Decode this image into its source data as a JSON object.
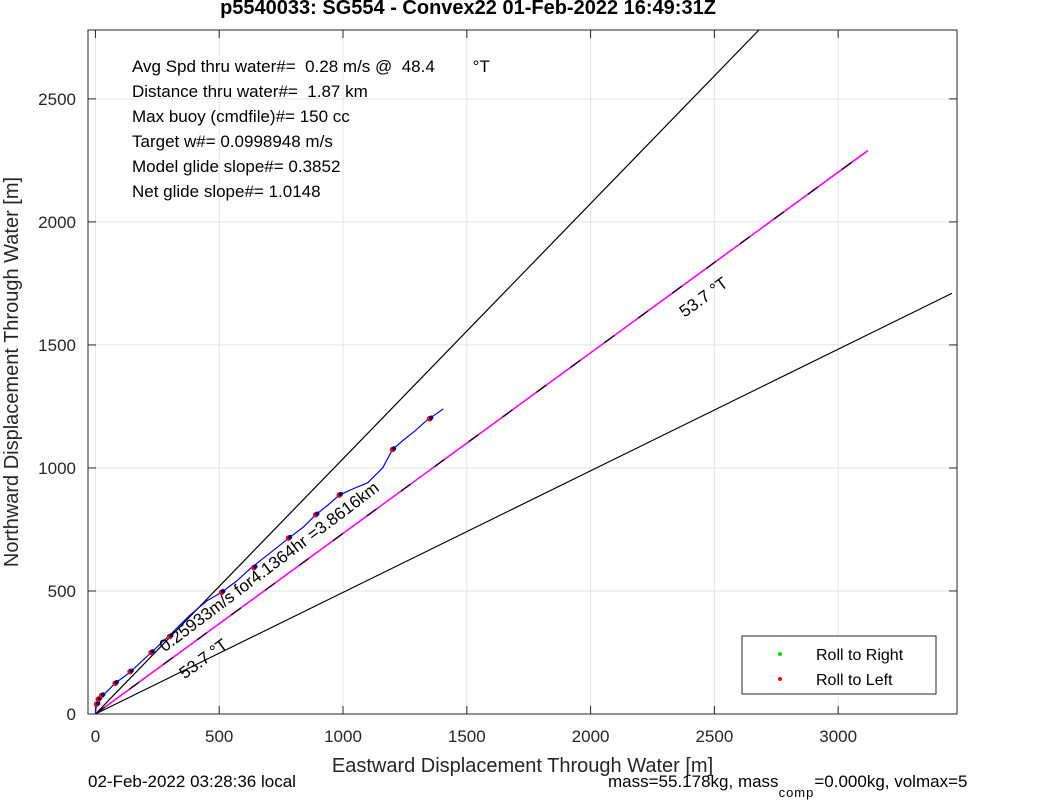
{
  "header": {
    "title": "p5540033: SG554 - Convex22 01-Feb-2022 16:49:31Z"
  },
  "footer": {
    "local_time": "02-Feb-2022 03:28:36 local",
    "mass_prefix": "mass=55.178kg, mass",
    "mass_sub": "comp",
    "mass_suffix": "=0.000kg, volmax=5"
  },
  "annotations": [
    "Avg Spd thru water#=  0.28 m/s @  48.4        °T",
    "Distance thru water#=  1.87 km",
    "Max buoy (cmdfile)#= 150 cc",
    "Target w#= 0.0998948 m/s",
    "Model glide slope#= 0.3852",
    "Net glide slope#= 1.0148"
  ],
  "chart_data": {
    "type": "line",
    "title": "p5540033: SG554 - Convex22 01-Feb-2022 16:49:31Z",
    "xlabel": "Eastward Displacement Through Water [m]",
    "ylabel": "Northward Displacement Through Water [m]",
    "xlim": [
      -30,
      3480
    ],
    "ylim": [
      0,
      2780
    ],
    "xticks": [
      0,
      500,
      1000,
      1500,
      2000,
      2500,
      3000
    ],
    "yticks": [
      0,
      500,
      1000,
      1500,
      2000,
      2500
    ],
    "grid": true,
    "legend": {
      "position": "bottom-right",
      "entries": [
        {
          "label": "Roll to Right",
          "color": "#00dd00"
        },
        {
          "label": "Roll to Left",
          "color": "#ff0000"
        }
      ]
    },
    "colors": {
      "track": "#0000ff",
      "bearing_line": "#ff00ff",
      "cone_lines": "#000000",
      "roll_left": "#ff0000",
      "roll_right": "#00dd00",
      "dive_points": "#000080"
    },
    "track": {
      "x": [
        0,
        2,
        5,
        10,
        20,
        40,
        80,
        140,
        220,
        300,
        380,
        450,
        510,
        570,
        630,
        700,
        775,
        840,
        890,
        940,
        985,
        1040,
        1100,
        1160,
        1200,
        1240,
        1290,
        1340,
        1370,
        1405
      ],
      "y": [
        0,
        20,
        40,
        55,
        68,
        85,
        125,
        170,
        245,
        320,
        400,
        460,
        495,
        540,
        595,
        650,
        710,
        760,
        810,
        850,
        890,
        915,
        940,
        1000,
        1075,
        1110,
        1150,
        1195,
        1215,
        1240
      ]
    },
    "dive_markers": {
      "x": [
        5,
        12,
        25,
        80,
        140,
        225,
        300,
        510,
        640,
        780,
        890,
        985,
        1200,
        1350
      ],
      "y": [
        40,
        60,
        75,
        125,
        172,
        250,
        315,
        495,
        595,
        715,
        810,
        890,
        1075,
        1200
      ]
    },
    "bearing_line": {
      "x": [
        0,
        3120
      ],
      "y": [
        0,
        2290
      ]
    },
    "cone_lines": [
      {
        "x": [
          0,
          2680
        ],
        "y": [
          0,
          2780
        ]
      },
      {
        "x": [
          0,
          3460
        ],
        "y": [
          0,
          1710
        ]
      }
    ],
    "text_annotations": [
      {
        "text": "53.7 °T",
        "x": 2380,
        "y": 1610,
        "angle": -36
      },
      {
        "text": "53.7 °T",
        "x": 360,
        "y": 140,
        "angle": -36
      },
      {
        "text": "0.25933m/s for4.1364hr =3.8616km",
        "x": 280,
        "y": 250,
        "angle": -37
      }
    ]
  }
}
